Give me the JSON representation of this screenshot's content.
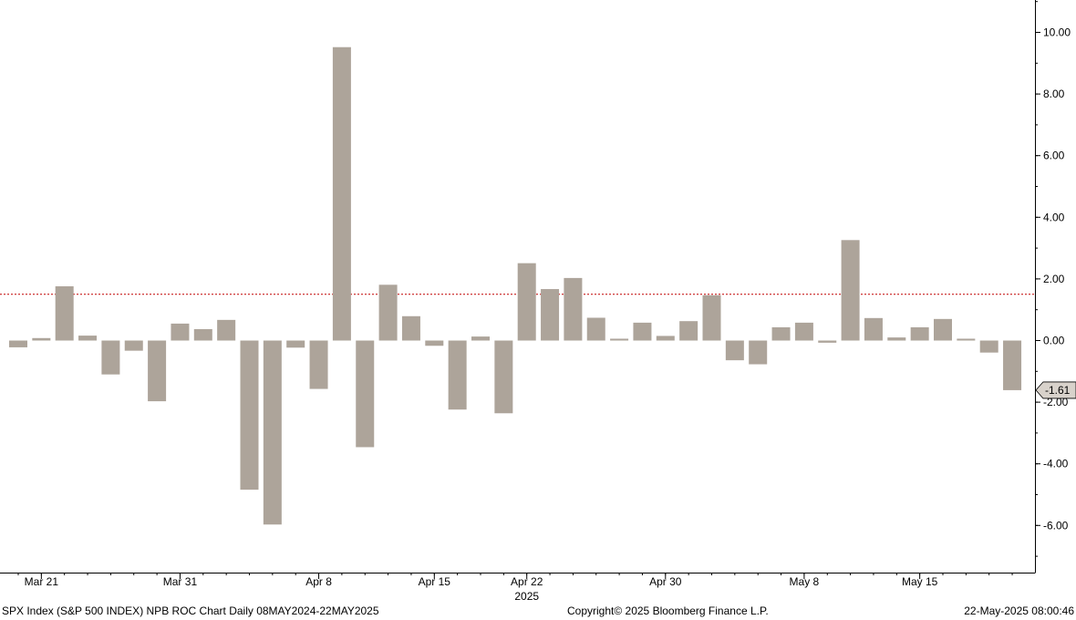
{
  "colors": {
    "bar": "#ada49a",
    "ref_line": "#c00000",
    "axis": "#000000"
  },
  "footer": {
    "left": "SPX Index (S&P 500 INDEX) NPB ROC Chart  Daily 08MAY2024-22MAY2025",
    "center": "Copyright© 2025 Bloomberg Finance L.P.",
    "right": "22-May-2025 08:00:46"
  },
  "chart_data": {
    "type": "bar",
    "y_axis_side": "right",
    "ylim": [
      -7.5,
      11.0
    ],
    "y_ticks": [
      10,
      8,
      6,
      4,
      2,
      0,
      -2,
      -4,
      -6
    ],
    "y_tick_labels": [
      "10.00",
      "8.00",
      "6.00",
      "4.00",
      "2.00",
      "0.00",
      "-2.00",
      "-4.00",
      "-6.00"
    ],
    "reference_line": 1.5,
    "last_value_label": "-1.61",
    "x_labels": [
      {
        "label": "Mar 21",
        "index": 1
      },
      {
        "label": "Mar 31",
        "index": 7
      },
      {
        "label": "Apr 8",
        "index": 13
      },
      {
        "label": "Apr 15",
        "index": 18
      },
      {
        "label": "Apr 22",
        "index": 22
      },
      {
        "label": "Apr 30",
        "index": 28
      },
      {
        "label": "May 8",
        "index": 34
      },
      {
        "label": "May 15",
        "index": 39
      }
    ],
    "year_label": "2025",
    "year_label_index": 22,
    "values": [
      -0.22,
      0.08,
      1.76,
      0.16,
      -1.1,
      -0.33,
      -1.97,
      0.55,
      0.37,
      0.67,
      -4.84,
      -5.97,
      -0.23,
      -1.57,
      9.52,
      -3.46,
      1.81,
      0.79,
      -0.17,
      -2.24,
      0.13,
      -2.36,
      2.51,
      1.67,
      2.03,
      0.74,
      0.06,
      0.58,
      0.15,
      0.63,
      1.47,
      -0.64,
      -0.77,
      0.43,
      0.58,
      -0.07,
      3.26,
      0.73,
      0.1,
      0.43,
      0.7,
      0.06,
      -0.39,
      -1.61
    ]
  }
}
